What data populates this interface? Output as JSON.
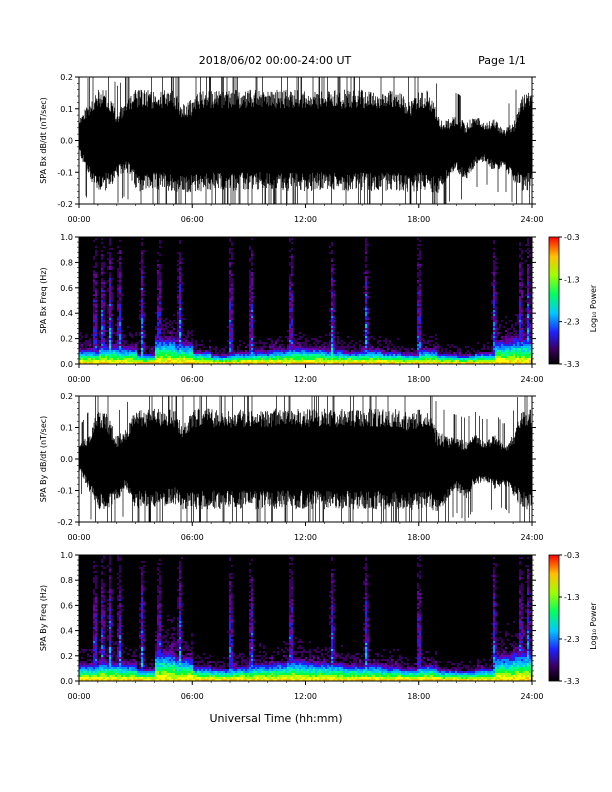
{
  "header": {
    "title": "2018/06/02  00:00-24:00 UT",
    "page_label": "Page 1/1"
  },
  "footer": {
    "xlabel": "Universal Time (hh:mm)"
  },
  "colors": {
    "trace": "#000000",
    "spectrogram_background": "#000000"
  },
  "chart_data": [
    {
      "type": "line",
      "panel": "bx-time-series",
      "ylabel": "SPA Bx dB/dt (nT/sec)",
      "xlabel": "",
      "xlim": [
        0,
        24
      ],
      "ylim": [
        -0.2,
        0.2
      ],
      "yticks": [
        -0.2,
        -0.1,
        0.0,
        0.1,
        0.2
      ],
      "ytick_labels": [
        "-0.2",
        "-0.1",
        "0.0",
        "0.1",
        "0.2"
      ],
      "xticks": [
        0,
        6,
        12,
        18,
        24
      ],
      "xtick_labels": [
        "00:00",
        "06:00",
        "12:00",
        "18:00",
        "24:00"
      ],
      "series": [
        {
          "x_hours": [
            0,
            0.5,
            1,
            1.5,
            2,
            2.5,
            3,
            3.5,
            4,
            4.5,
            5,
            5.5,
            6,
            6.5,
            7,
            7.5,
            8,
            8.5,
            9,
            9.5,
            10,
            10.5,
            11,
            11.5,
            12,
            12.5,
            13,
            13.5,
            14,
            14.5,
            15,
            15.5,
            16,
            16.5,
            17,
            17.5,
            18,
            18.5,
            19,
            19.5,
            20,
            20.5,
            21,
            21.5,
            22,
            22.5,
            23,
            23.5,
            24
          ],
          "envelope_upper": [
            0.08,
            0.15,
            0.2,
            0.2,
            0.12,
            0.15,
            0.2,
            0.2,
            0.2,
            0.2,
            0.2,
            0.15,
            0.17,
            0.2,
            0.2,
            0.2,
            0.2,
            0.2,
            0.2,
            0.2,
            0.2,
            0.2,
            0.2,
            0.2,
            0.2,
            0.2,
            0.2,
            0.2,
            0.2,
            0.2,
            0.2,
            0.2,
            0.2,
            0.2,
            0.2,
            0.16,
            0.2,
            0.2,
            0.12,
            0.09,
            0.1,
            0.08,
            0.1,
            0.07,
            0.09,
            0.05,
            0.08,
            0.18,
            0.2
          ],
          "envelope_lower": [
            -0.05,
            -0.15,
            -0.2,
            -0.2,
            -0.15,
            -0.12,
            -0.2,
            -0.2,
            -0.2,
            -0.2,
            -0.2,
            -0.2,
            -0.2,
            -0.2,
            -0.2,
            -0.2,
            -0.2,
            -0.2,
            -0.2,
            -0.2,
            -0.2,
            -0.2,
            -0.2,
            -0.2,
            -0.2,
            -0.2,
            -0.2,
            -0.2,
            -0.2,
            -0.2,
            -0.2,
            -0.2,
            -0.2,
            -0.2,
            -0.2,
            -0.2,
            -0.2,
            -0.2,
            -0.2,
            -0.15,
            -0.12,
            -0.15,
            -0.1,
            -0.08,
            -0.12,
            -0.1,
            -0.15,
            -0.2,
            -0.2
          ]
        }
      ]
    },
    {
      "type": "heatmap",
      "panel": "bx-spectrogram",
      "ylabel": "SPA Bx Freq (Hz)",
      "xlabel": "",
      "xlim": [
        0,
        24
      ],
      "ylim": [
        0.0,
        1.0
      ],
      "yticks": [
        0.0,
        0.2,
        0.4,
        0.6,
        0.8,
        1.0
      ],
      "ytick_labels": [
        "0.0",
        "0.2",
        "0.4",
        "0.6",
        "0.8",
        "1.0"
      ],
      "xticks": [
        0,
        6,
        12,
        18,
        24
      ],
      "xtick_labels": [
        "00:00",
        "06:00",
        "12:00",
        "18:00",
        "24:00"
      ],
      "colorbar": {
        "label": "Log₁₀ Power",
        "range": [
          -3.3,
          -0.3
        ],
        "ticks": [
          -3.3,
          -2.3,
          -1.3,
          -0.3
        ],
        "tick_labels": [
          "-3.3",
          "-2.3",
          "-1.3",
          "-0.3"
        ]
      },
      "bursts_hours": [
        0.8,
        1.2,
        1.6,
        2.1,
        3.3,
        4.2,
        5.3,
        8.0,
        9.1,
        11.2,
        13.4,
        15.2,
        18.0,
        22.0,
        23.4,
        23.8
      ],
      "low_freq_activity": [
        0.12,
        0.15,
        0.14,
        0.08,
        0.22,
        0.18,
        0.1,
        0.07,
        0.09,
        0.1,
        0.12,
        0.14,
        0.13,
        0.12,
        0.1,
        0.12,
        0.1,
        0.08,
        0.12,
        0.08,
        0.07,
        0.09,
        0.2,
        0.22
      ]
    },
    {
      "type": "line",
      "panel": "by-time-series",
      "ylabel": "SPA By dB/dt (nT/sec)",
      "xlabel": "",
      "xlim": [
        0,
        24
      ],
      "ylim": [
        -0.2,
        0.2
      ],
      "yticks": [
        -0.2,
        -0.1,
        0.0,
        0.1,
        0.2
      ],
      "ytick_labels": [
        "-0.2",
        "-0.1",
        "0.0",
        "0.1",
        "0.2"
      ],
      "xticks": [
        0,
        6,
        12,
        18,
        24
      ],
      "xtick_labels": [
        "00:00",
        "06:00",
        "12:00",
        "18:00",
        "24:00"
      ],
      "series": [
        {
          "x_hours": [
            0,
            0.5,
            1,
            1.5,
            2,
            2.5,
            3,
            3.5,
            4,
            4.5,
            5,
            5.5,
            6,
            6.5,
            7,
            7.5,
            8,
            8.5,
            9,
            9.5,
            10,
            10.5,
            11,
            11.5,
            12,
            12.5,
            13,
            13.5,
            14,
            14.5,
            15,
            15.5,
            16,
            16.5,
            17,
            17.5,
            18,
            18.5,
            19,
            19.5,
            20,
            20.5,
            21,
            21.5,
            22,
            22.5,
            23,
            23.5,
            24
          ],
          "envelope_upper": [
            0.05,
            0.1,
            0.2,
            0.18,
            0.1,
            0.12,
            0.2,
            0.2,
            0.2,
            0.2,
            0.2,
            0.15,
            0.2,
            0.2,
            0.2,
            0.2,
            0.2,
            0.2,
            0.2,
            0.2,
            0.2,
            0.2,
            0.2,
            0.2,
            0.2,
            0.2,
            0.2,
            0.2,
            0.2,
            0.2,
            0.2,
            0.2,
            0.2,
            0.2,
            0.2,
            0.18,
            0.2,
            0.2,
            0.12,
            0.1,
            0.09,
            0.08,
            0.1,
            0.07,
            0.1,
            0.06,
            0.1,
            0.2,
            0.2
          ],
          "envelope_lower": [
            -0.04,
            -0.12,
            -0.2,
            -0.2,
            -0.16,
            -0.12,
            -0.2,
            -0.2,
            -0.2,
            -0.2,
            -0.18,
            -0.2,
            -0.2,
            -0.2,
            -0.2,
            -0.2,
            -0.2,
            -0.2,
            -0.2,
            -0.2,
            -0.2,
            -0.2,
            -0.2,
            -0.2,
            -0.2,
            -0.2,
            -0.2,
            -0.2,
            -0.2,
            -0.2,
            -0.2,
            -0.2,
            -0.2,
            -0.2,
            -0.2,
            -0.2,
            -0.2,
            -0.2,
            -0.2,
            -0.16,
            -0.12,
            -0.15,
            -0.1,
            -0.09,
            -0.12,
            -0.1,
            -0.14,
            -0.2,
            -0.2
          ]
        }
      ]
    },
    {
      "type": "heatmap",
      "panel": "by-spectrogram",
      "ylabel": "SPA By Freq (Hz)",
      "xlabel": "Universal Time (hh:mm)",
      "xlim": [
        0,
        24
      ],
      "ylim": [
        0.0,
        1.0
      ],
      "yticks": [
        0.0,
        0.2,
        0.4,
        0.6,
        0.8,
        1.0
      ],
      "ytick_labels": [
        "0.0",
        "0.2",
        "0.4",
        "0.6",
        "0.8",
        "1.0"
      ],
      "xticks": [
        0,
        6,
        12,
        18,
        24
      ],
      "xtick_labels": [
        "00:00",
        "06:00",
        "12:00",
        "18:00",
        "24:00"
      ],
      "colorbar": {
        "label": "Log₁₀ Power",
        "range": [
          -3.3,
          -0.3
        ],
        "ticks": [
          -3.3,
          -2.3,
          -1.3,
          -0.3
        ],
        "tick_labels": [
          "-3.3",
          "-2.3",
          "-1.3",
          "-0.3"
        ]
      },
      "bursts_hours": [
        0.8,
        1.2,
        1.6,
        2.1,
        3.3,
        4.2,
        5.3,
        8.0,
        9.1,
        11.2,
        13.4,
        15.2,
        18.0,
        22.0,
        23.4,
        23.8
      ],
      "low_freq_activity": [
        0.14,
        0.16,
        0.15,
        0.1,
        0.25,
        0.2,
        0.12,
        0.1,
        0.12,
        0.14,
        0.15,
        0.18,
        0.16,
        0.15,
        0.13,
        0.14,
        0.12,
        0.1,
        0.13,
        0.09,
        0.08,
        0.1,
        0.22,
        0.25
      ]
    }
  ]
}
